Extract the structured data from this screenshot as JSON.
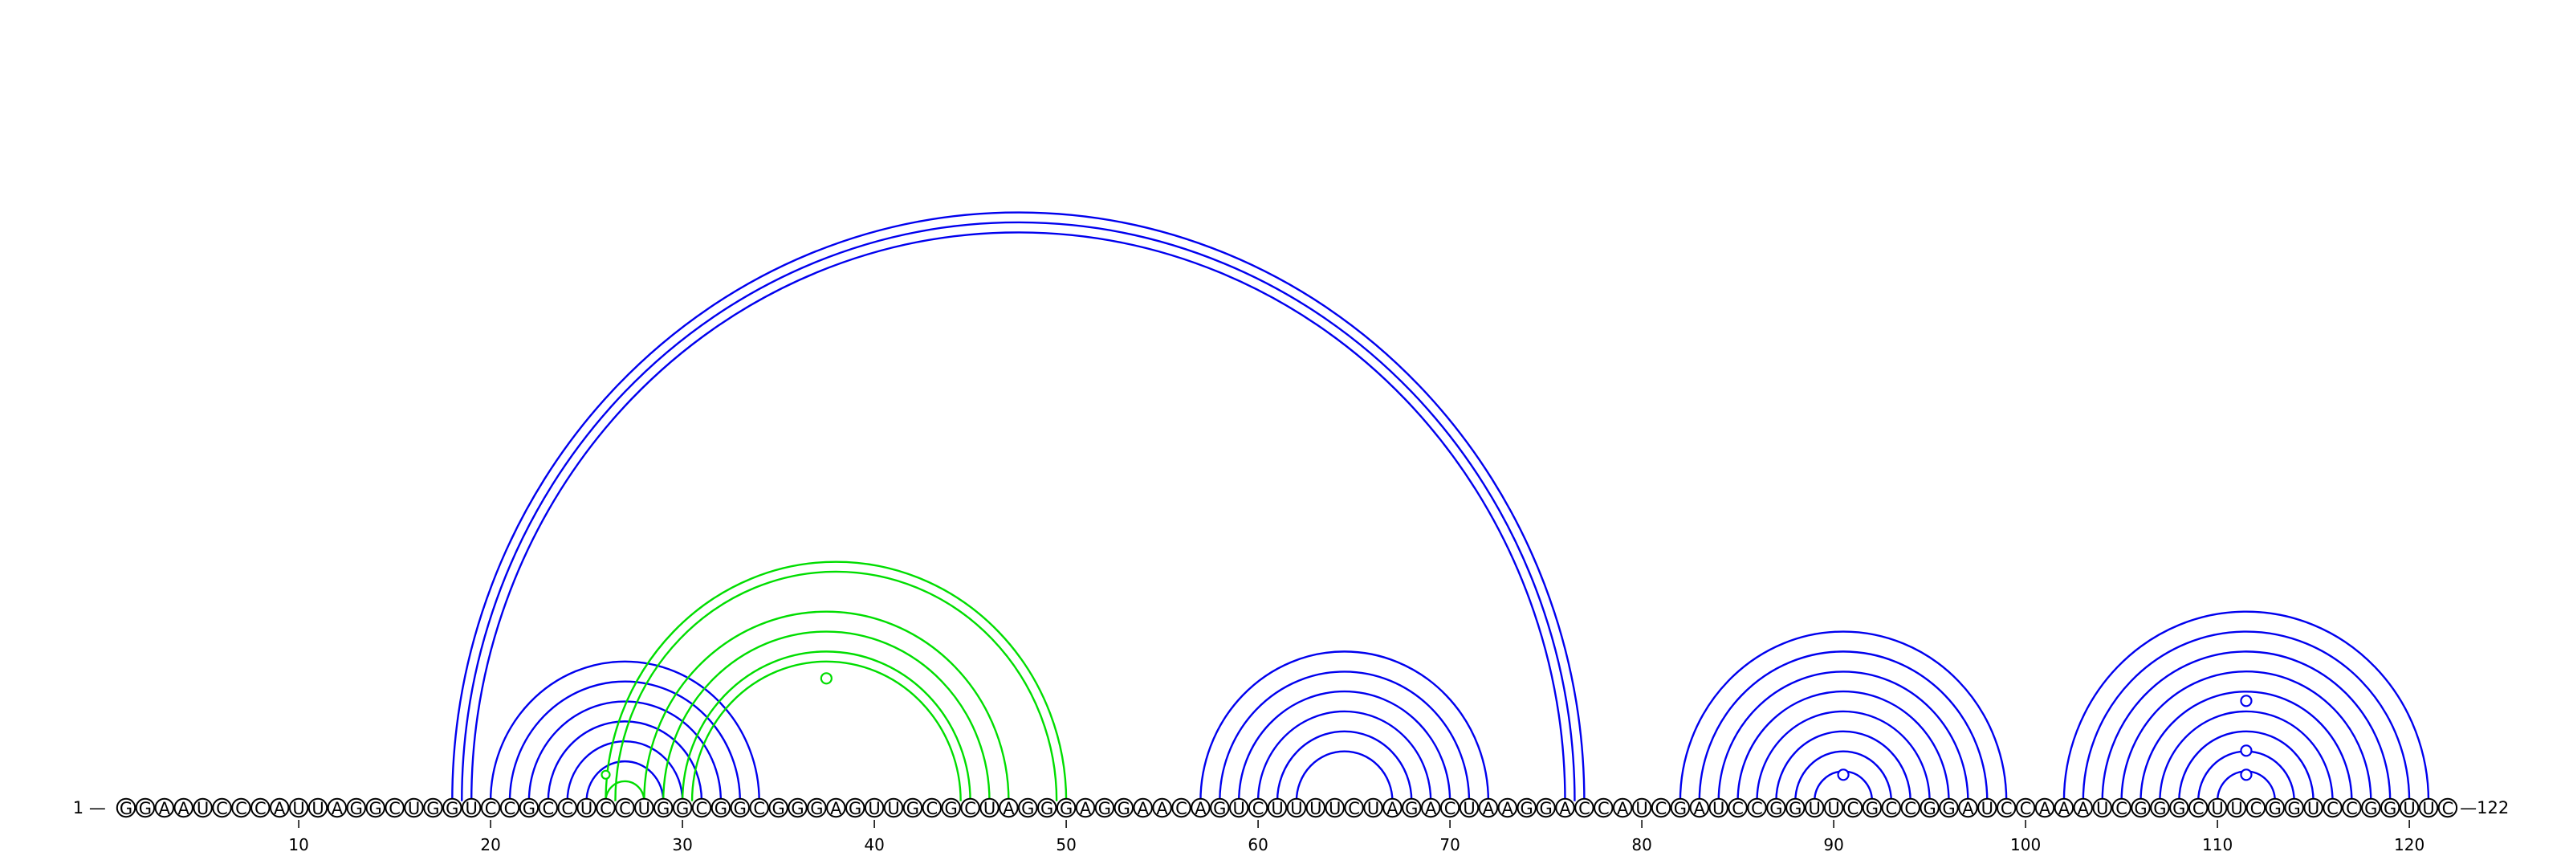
{
  "sequence": "GGAAUCCCAUUAGGCUGGUCCGCCUCCUGGCGGCGGGAGUUGCGCUAGGGAGGAACAGUCUUUUCUAGACUAAGGACCAUCGAUCCGGUUCGCCGGAUCCAAAUCGGGCUUCGGUCCGGUUC",
  "start_label": "1 —",
  "end_label": "—122",
  "ticks": [
    10,
    20,
    30,
    40,
    50,
    60,
    70,
    80,
    90,
    100,
    110,
    120
  ],
  "colors": {
    "blue": "#0000ee",
    "green": "#00dd00"
  },
  "arcs": [
    {
      "i": 18,
      "j": 77,
      "color": "blue"
    },
    {
      "i": 18.5,
      "j": 76.5,
      "color": "blue"
    },
    {
      "i": 19,
      "j": 76,
      "color": "blue"
    },
    {
      "i": 20,
      "j": 34,
      "color": "blue"
    },
    {
      "i": 21,
      "j": 33,
      "color": "blue"
    },
    {
      "i": 22,
      "j": 32,
      "color": "blue"
    },
    {
      "i": 23,
      "j": 31,
      "color": "blue"
    },
    {
      "i": 24,
      "j": 30,
      "color": "blue"
    },
    {
      "i": 25,
      "j": 29,
      "color": "blue"
    },
    {
      "i": 26,
      "j": 28,
      "color": "green"
    },
    {
      "i": 26,
      "j": 50,
      "color": "green"
    },
    {
      "i": 26.5,
      "j": 49.5,
      "color": "green"
    },
    {
      "i": 28,
      "j": 47,
      "color": "green"
    },
    {
      "i": 29,
      "j": 46,
      "color": "green"
    },
    {
      "i": 30,
      "j": 45,
      "color": "green"
    },
    {
      "i": 30.5,
      "j": 44.5,
      "color": "green"
    },
    {
      "i": 57,
      "j": 72,
      "color": "blue"
    },
    {
      "i": 58,
      "j": 71,
      "color": "blue"
    },
    {
      "i": 59,
      "j": 70,
      "color": "blue"
    },
    {
      "i": 60,
      "j": 69,
      "color": "blue"
    },
    {
      "i": 61,
      "j": 68,
      "color": "blue"
    },
    {
      "i": 62,
      "j": 67,
      "color": "blue"
    },
    {
      "i": 82,
      "j": 99,
      "color": "blue"
    },
    {
      "i": 83,
      "j": 98,
      "color": "blue"
    },
    {
      "i": 84,
      "j": 97,
      "color": "blue"
    },
    {
      "i": 85,
      "j": 96,
      "color": "blue"
    },
    {
      "i": 86,
      "j": 95,
      "color": "blue"
    },
    {
      "i": 87,
      "j": 94,
      "color": "blue"
    },
    {
      "i": 88,
      "j": 93,
      "color": "blue"
    },
    {
      "i": 89,
      "j": 92,
      "color": "blue"
    },
    {
      "i": 102,
      "j": 121,
      "color": "blue"
    },
    {
      "i": 103,
      "j": 120,
      "color": "blue"
    },
    {
      "i": 104,
      "j": 119,
      "color": "blue"
    },
    {
      "i": 105,
      "j": 118,
      "color": "blue"
    },
    {
      "i": 106,
      "j": 117,
      "color": "blue"
    },
    {
      "i": 107,
      "j": 116,
      "color": "blue"
    },
    {
      "i": 108,
      "j": 115,
      "color": "blue"
    },
    {
      "i": 109,
      "j": 114,
      "color": "blue"
    },
    {
      "i": 110,
      "j": 113,
      "color": "blue"
    }
  ],
  "markers": [
    {
      "pos": 37.5,
      "height": 150,
      "color": "green",
      "shape": "circle"
    },
    {
      "pos": 26,
      "height": 30,
      "color": "green",
      "shape": "dot"
    },
    {
      "pos": 90.5,
      "height": 30,
      "color": "blue",
      "shape": "circle"
    },
    {
      "pos": 111.5,
      "height": 30,
      "color": "blue",
      "shape": "circle"
    },
    {
      "pos": 111.5,
      "height": 60,
      "color": "blue",
      "shape": "circle"
    },
    {
      "pos": 111.5,
      "height": 122,
      "color": "blue",
      "shape": "circle"
    }
  ]
}
